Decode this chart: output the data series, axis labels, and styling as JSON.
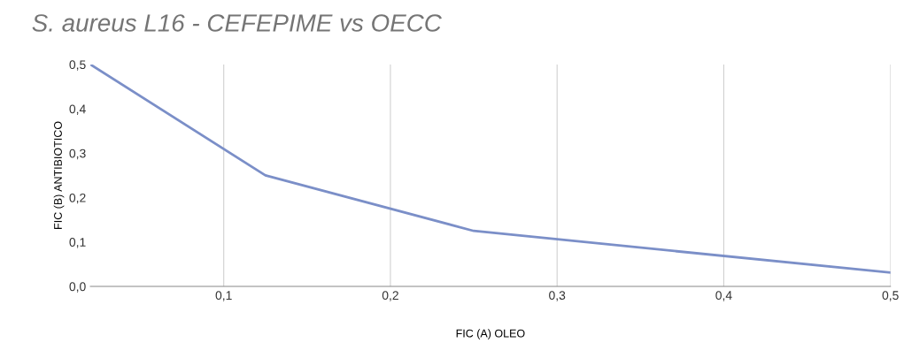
{
  "chart_data": {
    "type": "line",
    "title": "S. aureus L16 - CEFEPIME vs OECC",
    "xlabel": "FIC (A) OLEO",
    "ylabel": "FIC (B) ANTIBIOTICO",
    "x": [
      0.02,
      0.125,
      0.25,
      0.5
    ],
    "series": [
      {
        "color": "#7b8fc8",
        "values": [
          0.5,
          0.25,
          0.125,
          0.031
        ]
      }
    ],
    "xlim": [
      0.02,
      0.5
    ],
    "xticks": [
      {
        "value": 0.1,
        "label": "0,1"
      },
      {
        "value": 0.2,
        "label": "0,2"
      },
      {
        "value": 0.3,
        "label": "0,3"
      },
      {
        "value": 0.4,
        "label": "0,4"
      },
      {
        "value": 0.5,
        "label": "0,5"
      }
    ],
    "ylim": [
      0,
      0.5
    ],
    "yticks": [
      {
        "value": 0,
        "label": "0,0"
      },
      {
        "value": 0.1,
        "label": "0,1"
      },
      {
        "value": 0.2,
        "label": "0,2"
      },
      {
        "value": 0.3,
        "label": "0,3"
      },
      {
        "value": 0.4,
        "label": "0,4"
      },
      {
        "value": 0.5,
        "label": "0,5"
      }
    ],
    "grid": "x",
    "marker": "none",
    "line_style": "solid"
  }
}
